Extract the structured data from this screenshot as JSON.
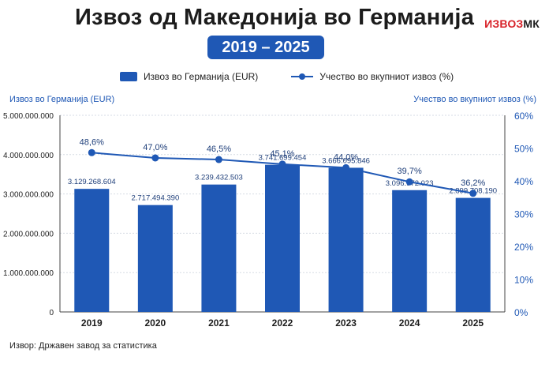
{
  "title": "Извоз од Македонија во Германија",
  "years_badge": "2019 – 2025",
  "logo": {
    "part1": "ИЗВОЗ",
    "part2": "МК"
  },
  "legend": {
    "bar_label": "Извоз во Германија (EUR)",
    "line_label": "Учество во вкупниот извоз (%)"
  },
  "left_axis_title": "Извоз во Германија (EUR)",
  "right_axis_title": "Учество во вкупниот извоз (%)",
  "source": "Извор: Државен завод за статистика",
  "colors": {
    "primary": "#1f58b5",
    "text": "#1c1c1c",
    "accent_red": "#d8232a"
  },
  "chart_data": {
    "type": "bar",
    "categories": [
      "2019",
      "2020",
      "2021",
      "2022",
      "2023",
      "2024",
      "2025"
    ],
    "series": [
      {
        "name": "Извоз во Германија (EUR)",
        "type": "bar",
        "axis": "left",
        "values": [
          3129268604,
          2717494390,
          3239432503,
          3741699454,
          3666095846,
          3096972023,
          2899708190
        ],
        "labels": [
          "3.129.268.604",
          "2.717.494.390",
          "3.239.432.503",
          "3.741.699.454",
          "3.666.095.846",
          "3.096.972.023",
          "2.899.708.190"
        ]
      },
      {
        "name": "Учество во вкупниот извоз (%)",
        "type": "line",
        "axis": "right",
        "values": [
          48.6,
          47.0,
          46.5,
          45.1,
          44.0,
          39.7,
          36.2
        ],
        "labels": [
          "48,6%",
          "47,0%",
          "46,5%",
          "45,1%",
          "44,0%",
          "39,7%",
          "36,2%"
        ]
      }
    ],
    "y_left": {
      "min": 0,
      "max": 5000000000,
      "ticks": [
        0,
        1000000000,
        2000000000,
        3000000000,
        4000000000,
        5000000000
      ],
      "tick_labels": [
        "0",
        "1.000.000.000",
        "2.000.000.000",
        "3.000.000.000",
        "4.000.000.000",
        "5.000.000.000"
      ]
    },
    "y_right": {
      "min": 0,
      "max": 60,
      "ticks": [
        0,
        10,
        20,
        30,
        40,
        50,
        60
      ],
      "tick_labels": [
        "0%",
        "10%",
        "20%",
        "30%",
        "40%",
        "50%",
        "60%"
      ]
    },
    "grid": true,
    "legend_position": "top"
  }
}
